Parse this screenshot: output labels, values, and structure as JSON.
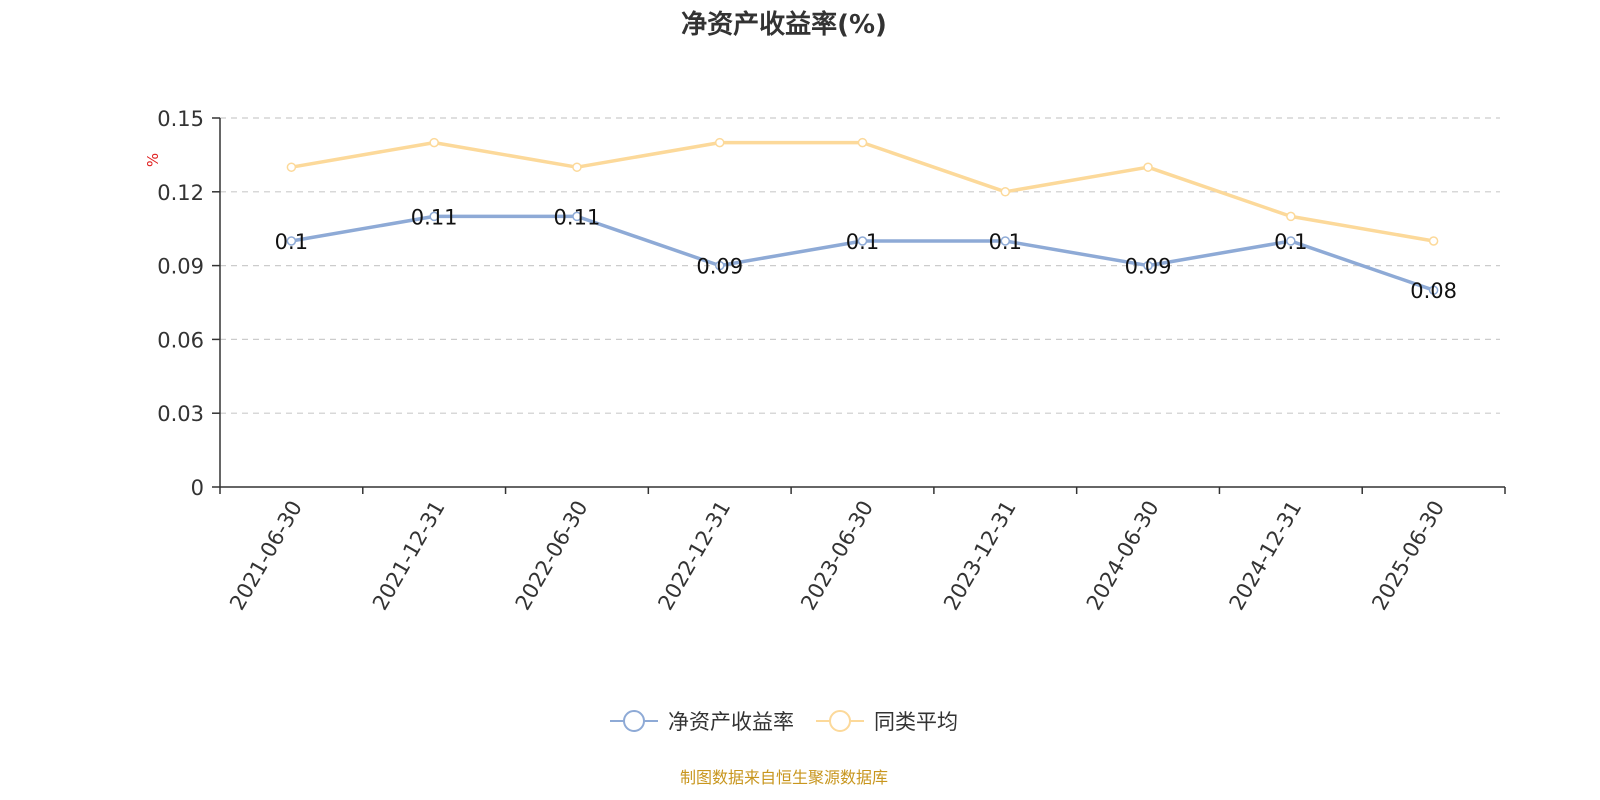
{
  "chart_data": {
    "type": "line",
    "title": "净资产收益率(%)",
    "ylabel": "%",
    "categories": [
      "2021-06-30",
      "2021-12-31",
      "2022-06-30",
      "2022-12-31",
      "2023-06-30",
      "2023-12-31",
      "2024-06-30",
      "2024-12-31",
      "2025-06-30"
    ],
    "y_ticks": [
      "0",
      "0.03",
      "0.06",
      "0.09",
      "0.12",
      "0.15"
    ],
    "ylim": [
      0,
      0.15
    ],
    "grid": true,
    "legend_position": "bottom-center",
    "series": [
      {
        "name": "净资产收益率",
        "color": "#8eaad6",
        "values": [
          0.1,
          0.11,
          0.11,
          0.09,
          0.1,
          0.1,
          0.09,
          0.1,
          0.08
        ],
        "labels": [
          "0.1",
          "0.11",
          "0.11",
          "0.09",
          "0.1",
          "0.1",
          "0.09",
          "0.1",
          "0.08"
        ]
      },
      {
        "name": "同类平均",
        "color": "#fcd99a",
        "values": [
          0.13,
          0.14,
          0.13,
          0.14,
          0.14,
          0.12,
          0.13,
          0.11,
          0.1
        ]
      }
    ]
  },
  "source_text": "制图数据来自恒生聚源数据库",
  "colors": {
    "ylabel": "#e02020",
    "source": "#c8961e",
    "grid": "#cccccc",
    "axis": "#333333"
  }
}
